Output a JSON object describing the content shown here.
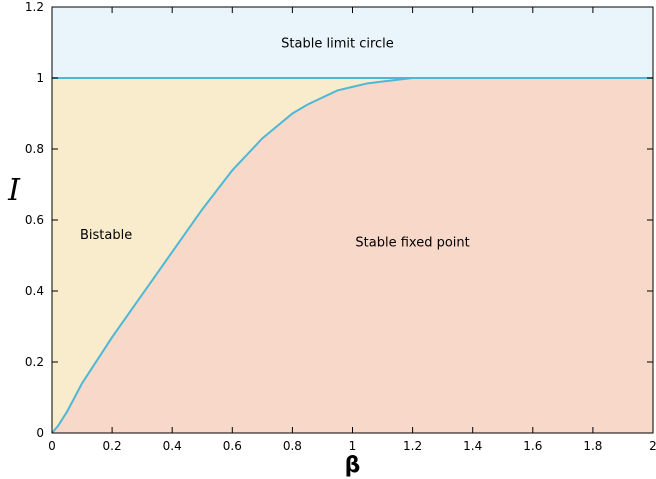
{
  "chart_data": {
    "type": "area",
    "title": "",
    "xlabel": "β",
    "ylabel": "I",
    "xlim": [
      0,
      2
    ],
    "ylim": [
      0,
      1.2
    ],
    "x_ticks": [
      0,
      0.2,
      0.4,
      0.6,
      0.8,
      1,
      1.2,
      1.4,
      1.6,
      1.8,
      2
    ],
    "x_tick_labels": [
      "0",
      "0.2",
      "0.4",
      "0.6",
      "0.8",
      "1",
      "1.2",
      "1.4",
      "1.6",
      "1.8",
      "2"
    ],
    "y_ticks": [
      0,
      0.2,
      0.4,
      0.6,
      0.8,
      1,
      1.2
    ],
    "y_tick_labels": [
      "0",
      "0.2",
      "0.4",
      "0.6",
      "0.8",
      "1",
      "1.2"
    ],
    "grid": false,
    "regions": [
      {
        "name": "Stable limit circle",
        "label_at": [
          0.95,
          1.1
        ],
        "color": "#eaf4fb"
      },
      {
        "name": "Bistable",
        "label_at": [
          0.18,
          0.56
        ],
        "color": "#f8eccd"
      },
      {
        "name": "Stable fixed point",
        "label_at": [
          1.2,
          0.54
        ],
        "color": "#f8d8c9"
      }
    ],
    "boundary_line": {
      "color": "#4db8d6",
      "limit_cycle_onset": 1.0,
      "x": [
        0,
        0.02,
        0.05,
        0.1,
        0.2,
        0.3,
        0.4,
        0.5,
        0.6,
        0.7,
        0.8,
        0.85,
        0.9,
        0.95,
        1.0,
        1.05,
        1.1,
        1.15,
        1.2,
        2.0
      ],
      "y": [
        0.0,
        0.02,
        0.06,
        0.14,
        0.27,
        0.39,
        0.51,
        0.63,
        0.74,
        0.83,
        0.9,
        0.925,
        0.945,
        0.965,
        0.975,
        0.985,
        0.99,
        0.995,
        1.0,
        1.0
      ]
    }
  }
}
